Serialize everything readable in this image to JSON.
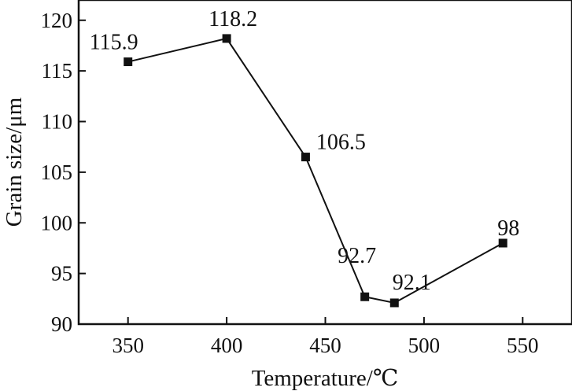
{
  "chart_data": {
    "type": "line",
    "xlabel": "Temperature/℃",
    "ylabel": "Grain size/μm",
    "xlim": [
      325,
      575
    ],
    "ylim": [
      90,
      122
    ],
    "x_ticks": [
      350,
      400,
      450,
      500,
      550
    ],
    "y_ticks": [
      90,
      95,
      100,
      105,
      110,
      115,
      120
    ],
    "grid": false,
    "series": [
      {
        "x": [
          350,
          400,
          440,
          470,
          485,
          540
        ],
        "y": [
          115.9,
          118.2,
          106.5,
          92.7,
          92.1,
          98
        ],
        "labels": [
          "115.9",
          "118.2",
          "106.5",
          "92.7",
          "92.1",
          "98"
        ],
        "marker": "square",
        "color": "#111111"
      }
    ]
  }
}
